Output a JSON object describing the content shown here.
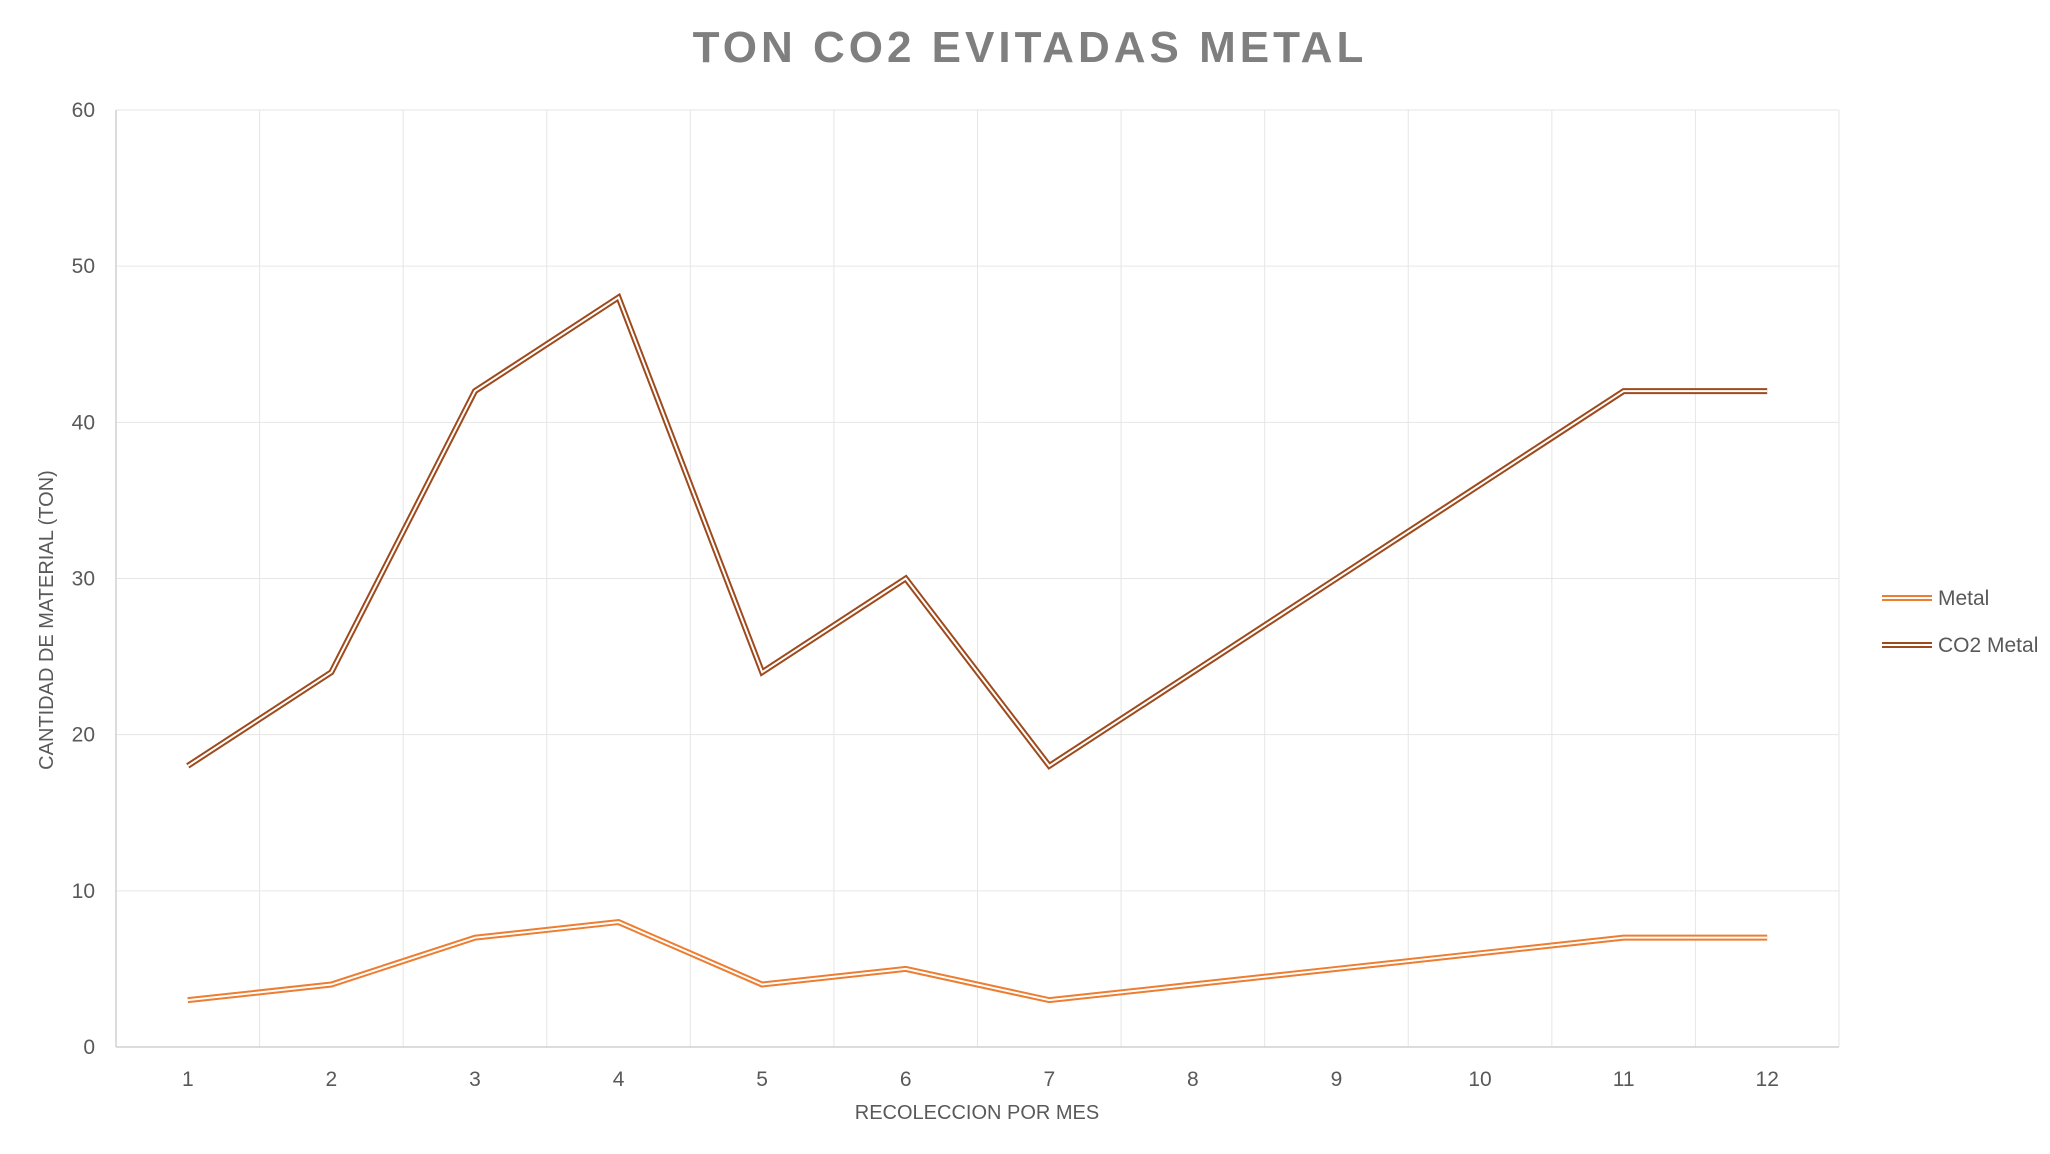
{
  "chart_data": {
    "type": "line",
    "title": "TON CO2 EVITADAS METAL",
    "xlabel": "RECOLECCION POR MES",
    "ylabel": "CANTIDAD DE MATERIAL (TON)",
    "categories": [
      "1",
      "2",
      "3",
      "4",
      "5",
      "6",
      "7",
      "8",
      "9",
      "10",
      "11",
      "12"
    ],
    "ylim": [
      0,
      60
    ],
    "yticks": [
      "0",
      "10",
      "20",
      "30",
      "40",
      "50",
      "60"
    ],
    "grid": true,
    "legend_position": "right",
    "series": [
      {
        "name": "Metal",
        "color": "#ed7d31",
        "values": [
          3,
          4,
          7,
          8,
          4,
          5,
          3,
          4,
          5,
          6,
          7,
          7
        ]
      },
      {
        "name": "CO2 Metal",
        "color": "#9e4a1c",
        "values": [
          18,
          24,
          42,
          48,
          24,
          30,
          18,
          24,
          30,
          36,
          42,
          42
        ]
      }
    ]
  }
}
